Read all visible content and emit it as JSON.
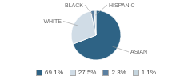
{
  "chart_data": {
    "type": "pie",
    "categories": [
      "ASIAN",
      "WHITE",
      "BLACK",
      "HISPANIC"
    ],
    "values": [
      69.1,
      27.5,
      2.3,
      1.1
    ],
    "value_labels": [
      "69.1%",
      "27.5%",
      "2.3%",
      "1.1%"
    ],
    "colors": [
      "#2e6385",
      "#d0dce6",
      "#5a7fa0",
      "#c5d5de"
    ],
    "legend": "bottom"
  }
}
